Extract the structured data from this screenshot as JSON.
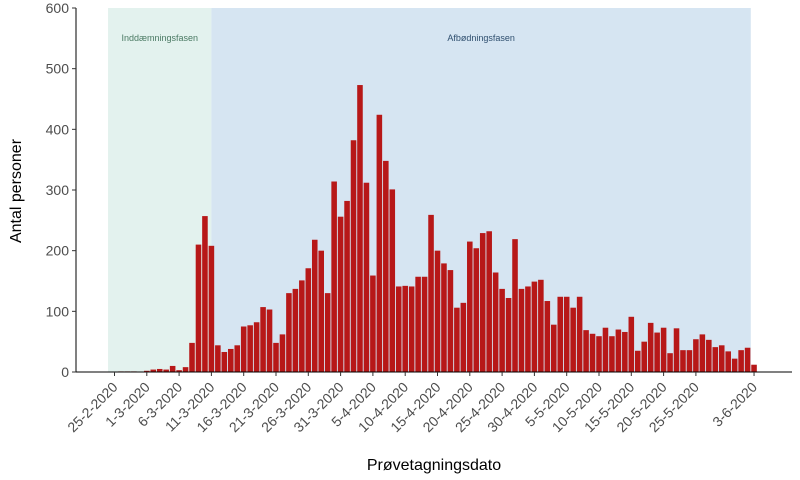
{
  "chart_data": {
    "type": "bar",
    "xlabel": "Prøvetagningsdato",
    "ylabel": "Antal personer",
    "ylim": [
      0,
      600
    ],
    "yticks": [
      0,
      100,
      200,
      300,
      400,
      500,
      600
    ],
    "x_tick_labels": [
      "25-2-2020",
      "1-3-2020",
      "6-3-2020",
      "11-3-2020",
      "16-3-2020",
      "21-3-2020",
      "26-3-2020",
      "31-3-2020",
      "5-4-2020",
      "10-4-2020",
      "15-4-2020",
      "20-4-2020",
      "25-4-2020",
      "30-4-2020",
      "5-5-2020",
      "10-5-2020",
      "15-5-2020",
      "20-5-2020",
      "25-5-2020",
      "3-6-2020"
    ],
    "x_tick_day_index": [
      0,
      5,
      10,
      15,
      20,
      25,
      30,
      35,
      40,
      45,
      50,
      55,
      60,
      65,
      70,
      75,
      80,
      85,
      90,
      99
    ],
    "start_date": "25-2-2020",
    "phases": [
      {
        "name": "Inddæmningsfasen",
        "start_day": -1,
        "end_day": 15,
        "color": "#e3f2ee",
        "label_color": "#4a7a63"
      },
      {
        "name": "Afbødningsfasen",
        "start_day": 15,
        "end_day": 98.5,
        "color": "#d6e5f2",
        "label_color": "#2f4f6f"
      }
    ],
    "bar_color": "#b71818",
    "values": [
      0,
      1,
      1,
      1,
      0,
      2,
      4,
      5,
      4,
      10,
      3,
      8,
      48,
      210,
      257,
      208,
      44,
      33,
      38,
      44,
      75,
      77,
      82,
      107,
      103,
      48,
      62,
      130,
      137,
      151,
      171,
      218,
      200,
      130,
      314,
      256,
      282,
      382,
      473,
      312,
      159,
      424,
      348,
      301,
      141,
      142,
      141,
      157,
      157,
      259,
      200,
      179,
      168,
      106,
      114,
      215,
      204,
      229,
      232,
      164,
      137,
      122,
      219,
      137,
      141,
      149,
      152,
      117,
      78,
      124,
      124,
      106,
      124,
      69,
      63,
      59,
      73,
      59,
      70,
      66,
      91,
      35,
      50,
      81,
      65,
      73,
      31,
      72,
      36,
      36,
      54,
      62,
      53,
      41,
      44,
      34,
      22,
      36,
      40,
      12
    ]
  }
}
